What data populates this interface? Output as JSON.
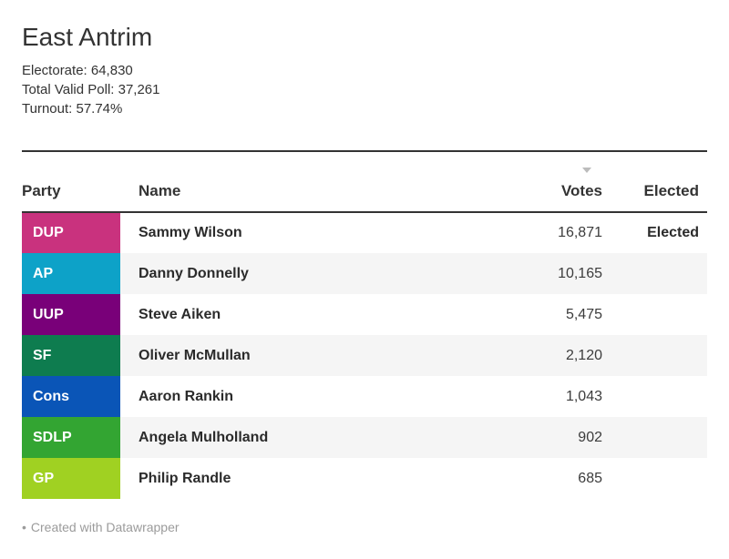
{
  "header": {
    "title": "East Antrim",
    "description_lines": [
      "Electorate: 64,830",
      "Total Valid Poll: 37,261",
      "Turnout: 57.74%"
    ]
  },
  "table": {
    "columns": [
      {
        "label": "Party",
        "align": "left"
      },
      {
        "label": "Name",
        "align": "left"
      },
      {
        "label": "Votes",
        "align": "right",
        "sort": "descending"
      },
      {
        "label": "Elected",
        "align": "right"
      }
    ],
    "sort_icon": "triangle-down-icon",
    "rows": [
      {
        "party": "DUP",
        "party_color": "#c9327e",
        "name": "Sammy Wilson",
        "votes": "16,871",
        "elected": "Elected"
      },
      {
        "party": "AP",
        "party_color": "#0da2c8",
        "name": "Danny Donnelly",
        "votes": "10,165",
        "elected": ""
      },
      {
        "party": "UUP",
        "party_color": "#790079",
        "name": "Steve Aiken",
        "votes": "5,475",
        "elected": ""
      },
      {
        "party": "SF",
        "party_color": "#0e7c4f",
        "name": "Oliver McMullan",
        "votes": "2,120",
        "elected": ""
      },
      {
        "party": "Cons",
        "party_color": "#0a55b7",
        "name": "Aaron Rankin",
        "votes": "1,043",
        "elected": ""
      },
      {
        "party": "SDLP",
        "party_color": "#33a532",
        "name": "Angela Mulholland",
        "votes": "902",
        "elected": ""
      },
      {
        "party": "GP",
        "party_color": "#a0d122",
        "name": "Philip Randle",
        "votes": "685",
        "elected": ""
      }
    ],
    "stripe_color": "#f5f5f5"
  },
  "footer": {
    "bullet": "•",
    "attribution": "Created with Datawrapper"
  },
  "colors": {
    "text": "#333333",
    "rule": "#333333",
    "muted_text": "#9b9b9b",
    "sort_arrow": "#bcbcbc",
    "row_stripe": "#f5f5f5",
    "background": "#ffffff"
  },
  "chart_data": {
    "type": "table",
    "title": "East Antrim",
    "description_lines": [
      "Electorate: 64,830",
      "Total Valid Poll: 37,261",
      "Turnout: 57.74%"
    ],
    "electorate": 64830,
    "total_valid_poll": 37261,
    "turnout_percent": 57.74,
    "columns": [
      "Party",
      "Name",
      "Votes",
      "Elected"
    ],
    "sorted_by": {
      "column": "Votes",
      "direction": "descending"
    },
    "rows": [
      {
        "party": "DUP",
        "party_color": "#c9327e",
        "name": "Sammy Wilson",
        "votes": 16871,
        "elected": true
      },
      {
        "party": "AP",
        "party_color": "#0da2c8",
        "name": "Danny Donnelly",
        "votes": 10165,
        "elected": false
      },
      {
        "party": "UUP",
        "party_color": "#790079",
        "name": "Steve Aiken",
        "votes": 5475,
        "elected": false
      },
      {
        "party": "SF",
        "party_color": "#0e7c4f",
        "name": "Oliver McMullan",
        "votes": 2120,
        "elected": false
      },
      {
        "party": "Cons",
        "party_color": "#0a55b7",
        "name": "Aaron Rankin",
        "votes": 1043,
        "elected": false
      },
      {
        "party": "SDLP",
        "party_color": "#33a532",
        "name": "Angela Mulholland",
        "votes": 902,
        "elected": false
      },
      {
        "party": "GP",
        "party_color": "#a0d122",
        "name": "Philip Randle",
        "votes": 685,
        "elected": false
      }
    ],
    "attribution": "Created with Datawrapper"
  }
}
